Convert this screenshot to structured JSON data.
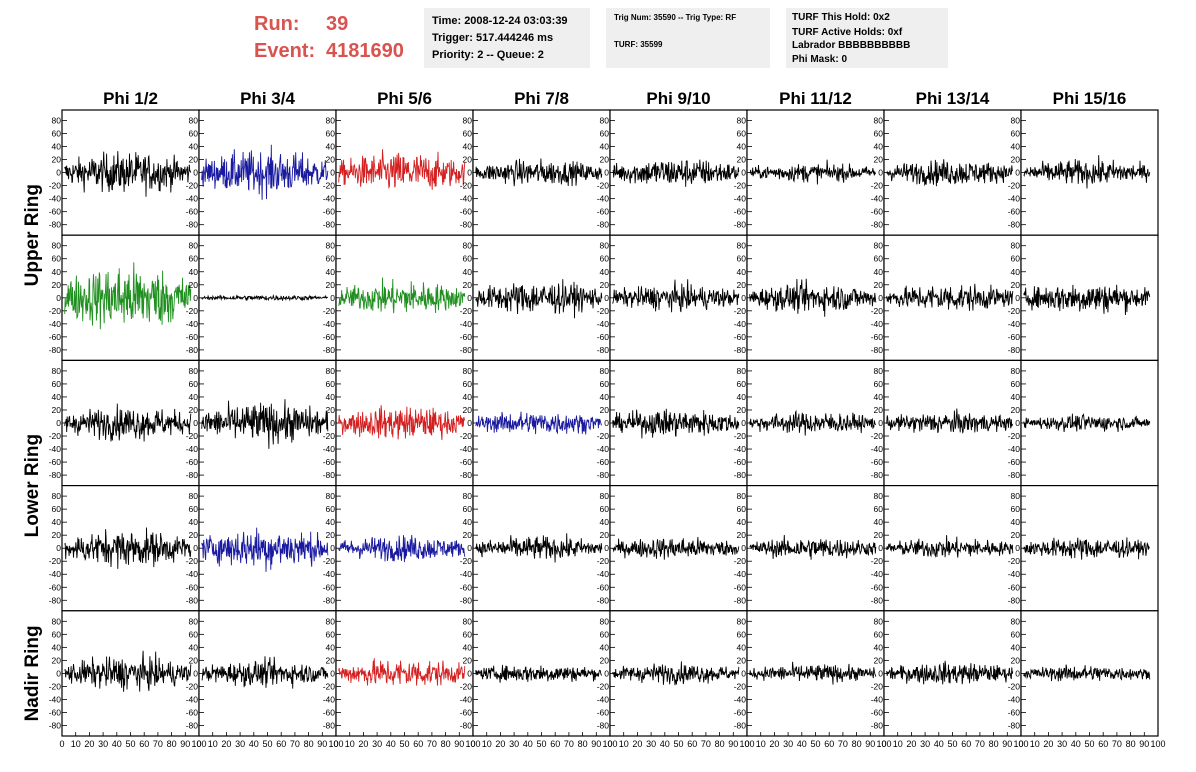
{
  "header": {
    "run_label": "Run:",
    "run_value": "39",
    "event_label": "Event:",
    "event_value": "4181690",
    "time": "Time: 2008-12-24 03:03:39",
    "trigger": "Trigger: 517.444246 ms",
    "priority": "Priority: 2 -- Queue: 2",
    "trig_num": "Trig Num: 35590 -- Trig Type: RF",
    "turf": "TURF: 35599",
    "turf_this_hold": "TURF This Hold: 0x2",
    "turf_active_holds": "TURF Active Holds: 0xf",
    "labrador": "Labrador BBBBBBBBBB",
    "phi_mask": "Phi Mask: 0"
  },
  "colors": {
    "header_red": "#d9534f",
    "panel_bg": "#efefef",
    "trace_black": "#000000",
    "trace_blue": "#1a1aa0",
    "trace_red": "#d42020",
    "trace_green": "#1f8f1f"
  },
  "chart_data": {
    "type": "line",
    "columns": [
      "Phi 1/2",
      "Phi 3/4",
      "Phi 5/6",
      "Phi 7/8",
      "Phi 9/10",
      "Phi 11/12",
      "Phi 13/14",
      "Phi 15/16"
    ],
    "row_groups": [
      {
        "label": "Upper Ring",
        "rows": 2
      },
      {
        "label": "Lower Ring",
        "rows": 2
      },
      {
        "label": "Nadir Ring",
        "rows": 1
      }
    ],
    "ylim": [
      -90,
      90
    ],
    "xlim": [
      0,
      100
    ],
    "y_ticks": [
      80,
      60,
      40,
      20,
      0,
      -20,
      -40,
      -60,
      -80
    ],
    "x_ticks": [
      0,
      10,
      20,
      30,
      40,
      50,
      60,
      70,
      80,
      90,
      100
    ],
    "x_tick_labels": [
      "0",
      "10",
      "20",
      "30",
      "40",
      "50",
      "60",
      "70",
      "80",
      "90",
      "100"
    ],
    "samples_per_trace": 260,
    "trace_colors": [
      [
        "black",
        "blue",
        "red",
        "black",
        "black",
        "black",
        "black",
        "black"
      ],
      [
        "green",
        "black",
        "green",
        "black",
        "black",
        "black",
        "black",
        "black"
      ],
      [
        "black",
        "black",
        "red",
        "blue",
        "black",
        "black",
        "black",
        "black"
      ],
      [
        "black",
        "blue",
        "blue",
        "black",
        "black",
        "black",
        "black",
        "black"
      ],
      [
        "black",
        "black",
        "red",
        "black",
        "black",
        "black",
        "black",
        "black"
      ]
    ],
    "trace_amplitudes": [
      [
        22,
        24,
        22,
        14,
        16,
        10,
        14,
        14
      ],
      [
        36,
        3,
        18,
        18,
        14,
        16,
        15,
        17
      ],
      [
        18,
        22,
        18,
        13,
        15,
        12,
        12,
        9
      ],
      [
        20,
        22,
        14,
        13,
        12,
        12,
        11,
        12
      ],
      [
        18,
        14,
        16,
        10,
        11,
        10,
        12,
        9
      ]
    ]
  }
}
